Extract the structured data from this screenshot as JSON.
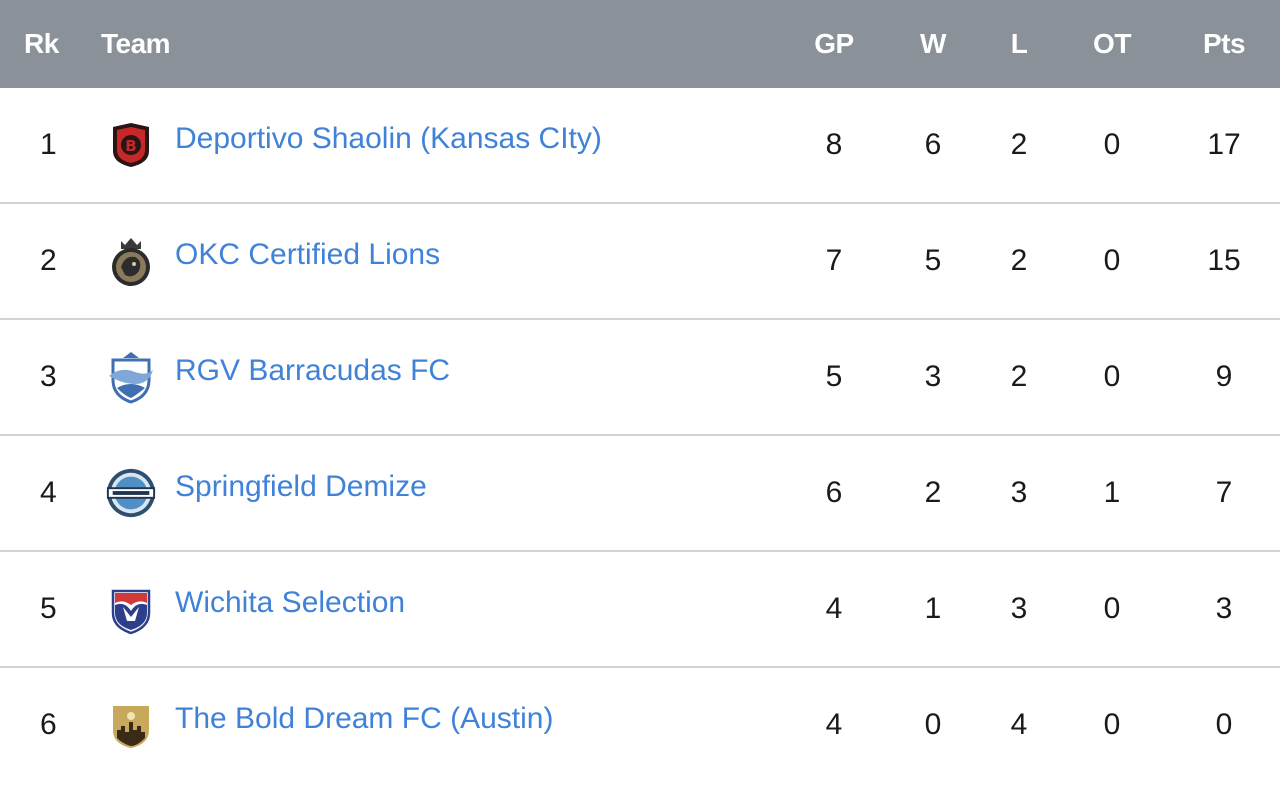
{
  "headers": {
    "rank": "Rk",
    "team": "Team",
    "gp": "GP",
    "w": "W",
    "l": "L",
    "ot": "OT",
    "pts": "Pts"
  },
  "rows": [
    {
      "rank": "1",
      "team": "Deportivo Shaolin (Kansas CIty)",
      "logo": "deportivo-shaolin-crest-icon",
      "gp": "8",
      "w": "6",
      "l": "2",
      "ot": "0",
      "pts": "17"
    },
    {
      "rank": "2",
      "team": "OKC Certified Lions",
      "logo": "okc-certified-lions-crest-icon",
      "gp": "7",
      "w": "5",
      "l": "2",
      "ot": "0",
      "pts": "15"
    },
    {
      "rank": "3",
      "team": "RGV Barracudas FC",
      "logo": "rgv-barracudas-crest-icon",
      "gp": "5",
      "w": "3",
      "l": "2",
      "ot": "0",
      "pts": "9"
    },
    {
      "rank": "4",
      "team": "Springfield Demize",
      "logo": "springfield-demize-crest-icon",
      "gp": "6",
      "w": "2",
      "l": "3",
      "ot": "1",
      "pts": "7"
    },
    {
      "rank": "5",
      "team": "Wichita Selection",
      "logo": "wichita-selection-crest-icon",
      "gp": "4",
      "w": "1",
      "l": "3",
      "ot": "0",
      "pts": "3"
    },
    {
      "rank": "6",
      "team": "The Bold Dream FC (Austin)",
      "logo": "bold-dream-crest-icon",
      "gp": "4",
      "w": "0",
      "l": "4",
      "ot": "0",
      "pts": "0"
    }
  ],
  "colors": {
    "header_bg": "#8a9199",
    "link": "#3f82d8",
    "divider": "#d3d3d3"
  }
}
